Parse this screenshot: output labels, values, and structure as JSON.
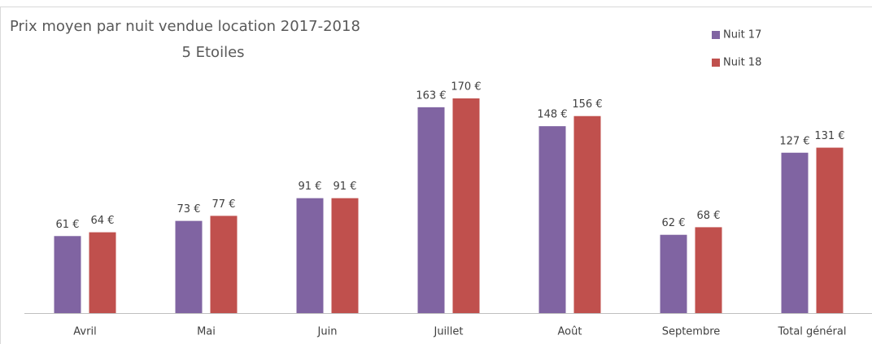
{
  "chart_data": {
    "type": "bar",
    "title": "Prix moyen par nuit vendue location 2017-2018",
    "subtitle": "5 Etoiles",
    "categories": [
      "Avril",
      "Mai",
      "Juin",
      "Juillet",
      "Août",
      "Septembre",
      "Total général"
    ],
    "series": [
      {
        "name": "Nuit 17",
        "color": "#8064a2",
        "values": [
          61,
          73,
          91,
          163,
          148,
          62,
          127
        ],
        "value_labels": [
          "61 €",
          "73 €",
          "91 €",
          "163 €",
          "148 €",
          "62 €",
          "127 €"
        ]
      },
      {
        "name": "Nuit 18",
        "color": "#c0504d",
        "values": [
          64,
          77,
          91,
          170,
          156,
          68,
          131
        ],
        "value_labels": [
          "64 €",
          "77 €",
          "91 €",
          "170 €",
          "156 €",
          "68 €",
          "131 €"
        ]
      }
    ],
    "legend": "top-right"
  }
}
